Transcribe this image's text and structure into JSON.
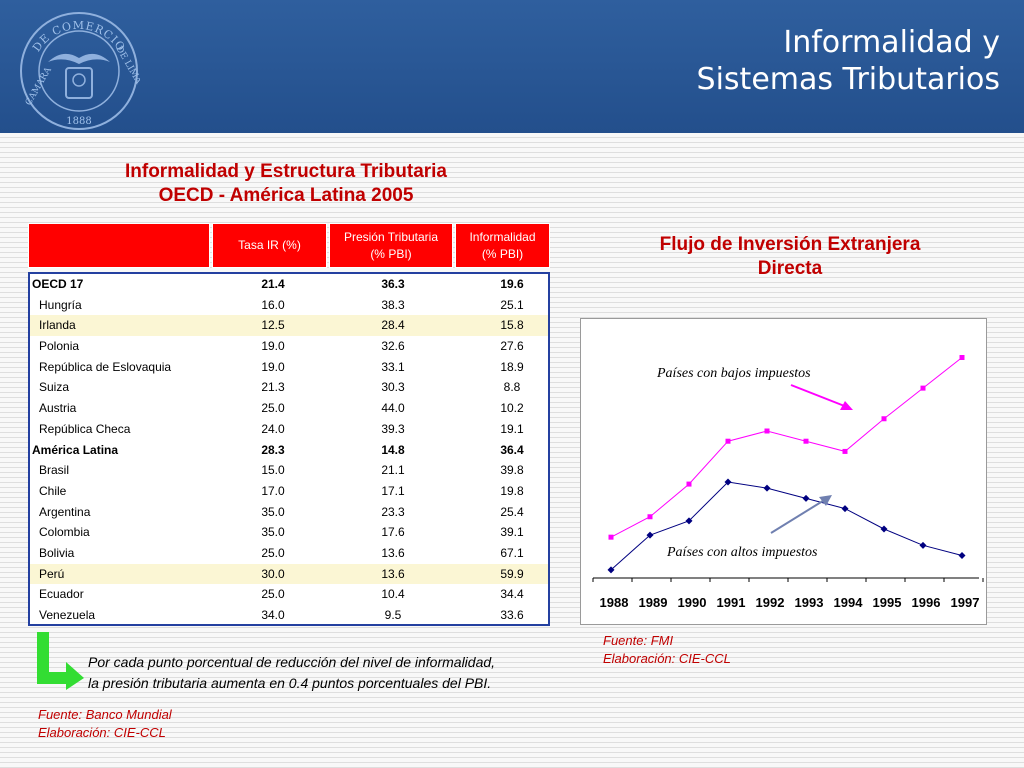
{
  "header": {
    "title_line1": "Informalidad y",
    "title_line2": "Sistemas Tributarios",
    "seal": {
      "ring_top": "DE COMERCIO",
      "ring_side_left": "CAMARA",
      "ring_side_right": "DE LIMA",
      "year": "1888",
      "icon": "chamber-of-commerce-seal-icon"
    }
  },
  "table": {
    "title_line1": "Informalidad y Estructura Tributaria",
    "title_line2": "OECD - América Latina 2005",
    "headers": [
      {
        "line1": "Tasa IR (%)",
        "line2": ""
      },
      {
        "line1": "Presión Tributaria",
        "line2": "(% PBI)"
      },
      {
        "line1": "Informalidad",
        "line2": "(% PBI)"
      }
    ],
    "rows": [
      {
        "name": "OECD 17",
        "ir": "21.4",
        "presion": "36.3",
        "informalidad": "19.6",
        "bold": true,
        "highlight": false
      },
      {
        "name": "Hungría",
        "ir": "16.0",
        "presion": "38.3",
        "informalidad": "25.1",
        "bold": false,
        "highlight": false
      },
      {
        "name": "Irlanda",
        "ir": "12.5",
        "presion": "28.4",
        "informalidad": "15.8",
        "bold": false,
        "highlight": true
      },
      {
        "name": "Polonia",
        "ir": "19.0",
        "presion": "32.6",
        "informalidad": "27.6",
        "bold": false,
        "highlight": false
      },
      {
        "name": "República de Eslovaquia",
        "ir": "19.0",
        "presion": "33.1",
        "informalidad": "18.9",
        "bold": false,
        "highlight": false
      },
      {
        "name": "Suiza",
        "ir": "21.3",
        "presion": "30.3",
        "informalidad": "8.8",
        "bold": false,
        "highlight": false
      },
      {
        "name": "Austria",
        "ir": "25.0",
        "presion": "44.0",
        "informalidad": "10.2",
        "bold": false,
        "highlight": false
      },
      {
        "name": "República Checa",
        "ir": "24.0",
        "presion": "39.3",
        "informalidad": "19.1",
        "bold": false,
        "highlight": false
      },
      {
        "name": "América Latina",
        "ir": "28.3",
        "presion": "14.8",
        "informalidad": "36.4",
        "bold": true,
        "highlight": false
      },
      {
        "name": "Brasil",
        "ir": "15.0",
        "presion": "21.1",
        "informalidad": "39.8",
        "bold": false,
        "highlight": false
      },
      {
        "name": "Chile",
        "ir": "17.0",
        "presion": "17.1",
        "informalidad": "19.8",
        "bold": false,
        "highlight": false
      },
      {
        "name": "Argentina",
        "ir": "35.0",
        "presion": "23.3",
        "informalidad": "25.4",
        "bold": false,
        "highlight": false
      },
      {
        "name": "Colombia",
        "ir": "35.0",
        "presion": "17.6",
        "informalidad": "39.1",
        "bold": false,
        "highlight": false
      },
      {
        "name": "Bolivia",
        "ir": "25.0",
        "presion": "13.6",
        "informalidad": "67.1",
        "bold": false,
        "highlight": false
      },
      {
        "name": "Perú",
        "ir": "30.0",
        "presion": "13.6",
        "informalidad": "59.9",
        "bold": false,
        "highlight": true
      },
      {
        "name": "Ecuador",
        "ir": "25.0",
        "presion": "10.4",
        "informalidad": "34.4",
        "bold": false,
        "highlight": false
      },
      {
        "name": "Venezuela",
        "ir": "34.0",
        "presion": "9.5",
        "informalidad": "33.6",
        "bold": false,
        "highlight": false
      }
    ],
    "note_line1": "Por cada punto porcentual de reducción del nivel de informalidad,",
    "note_line2": "la presión tributaria aumenta en 0.4 puntos porcentuales del PBI.",
    "source_line1": "Fuente: Banco Mundial",
    "source_line2": "Elaboración: CIE-CCL",
    "arrow_icon": "green-turn-right-arrow-icon"
  },
  "chart_data": {
    "type": "line",
    "title_line1": "Flujo de Inversión Extranjera",
    "title_line2": "Directa",
    "categories": [
      "1988",
      "1989",
      "1990",
      "1991",
      "1992",
      "1993",
      "1994",
      "1995",
      "1996",
      "1997"
    ],
    "series": [
      {
        "name": "Países con bajos impuestos",
        "color": "#ff00ff",
        "marker": "square",
        "values": [
          2.0,
          3.0,
          4.6,
          6.7,
          7.2,
          6.7,
          6.2,
          7.8,
          9.3,
          10.8
        ]
      },
      {
        "name": "Países con altos impuestos",
        "color": "#000080",
        "marker": "diamond",
        "values": [
          0.4,
          2.1,
          2.8,
          4.7,
          4.4,
          3.9,
          3.4,
          2.4,
          1.6,
          1.1
        ]
      }
    ],
    "ylim": [
      0,
      12
    ],
    "y_ticks_shown": false,
    "grid": false,
    "annotations": [
      {
        "text": "Países con bajos impuestos",
        "arrow_color": "#ff00ff"
      },
      {
        "text": "Países con altos impuestos",
        "arrow_color": "#7080b0"
      }
    ],
    "source_line1": "Fuente: FMI",
    "source_line2": "Elaboración: CIE-CCL"
  }
}
